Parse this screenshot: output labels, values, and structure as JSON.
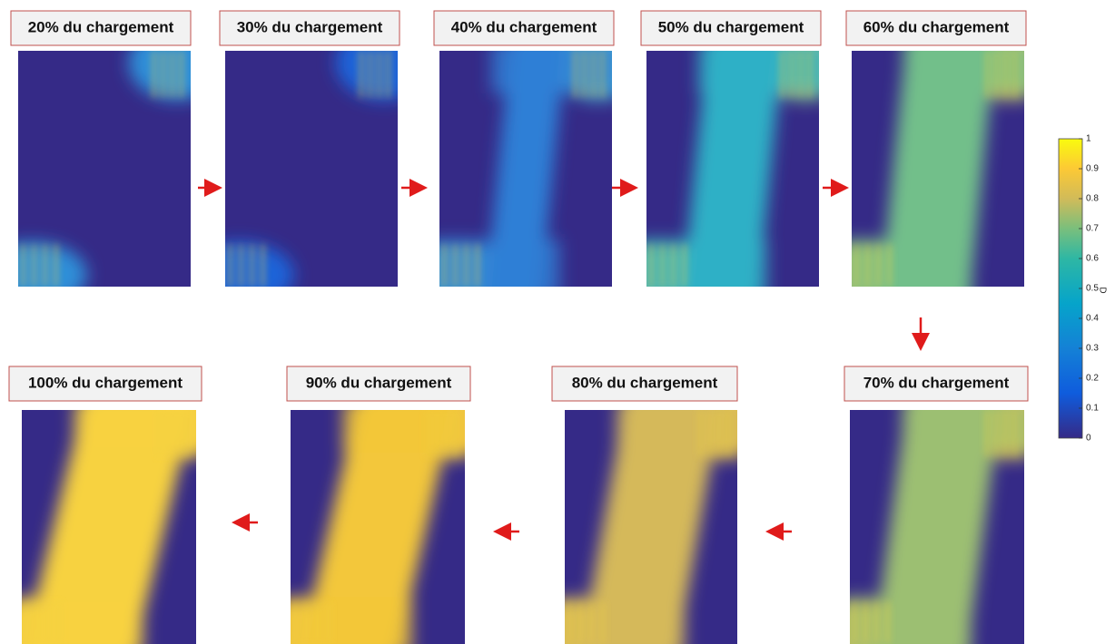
{
  "panels": [
    {
      "label": "20% du chargement"
    },
    {
      "label": "30% du chargement"
    },
    {
      "label": "40% du chargement"
    },
    {
      "label": "50% du chargement"
    },
    {
      "label": "60% du chargement"
    },
    {
      "label": "70% du chargement"
    },
    {
      "label": "80% du chargement"
    },
    {
      "label": "90% du chargement"
    },
    {
      "label": "100% du chargement"
    }
  ],
  "colorbar": {
    "label": "D",
    "lim": [
      0,
      1
    ],
    "ticks": [
      0,
      0.1,
      0.2,
      0.3,
      0.4,
      0.5,
      0.6,
      0.7,
      0.8,
      0.9,
      1
    ]
  }
}
